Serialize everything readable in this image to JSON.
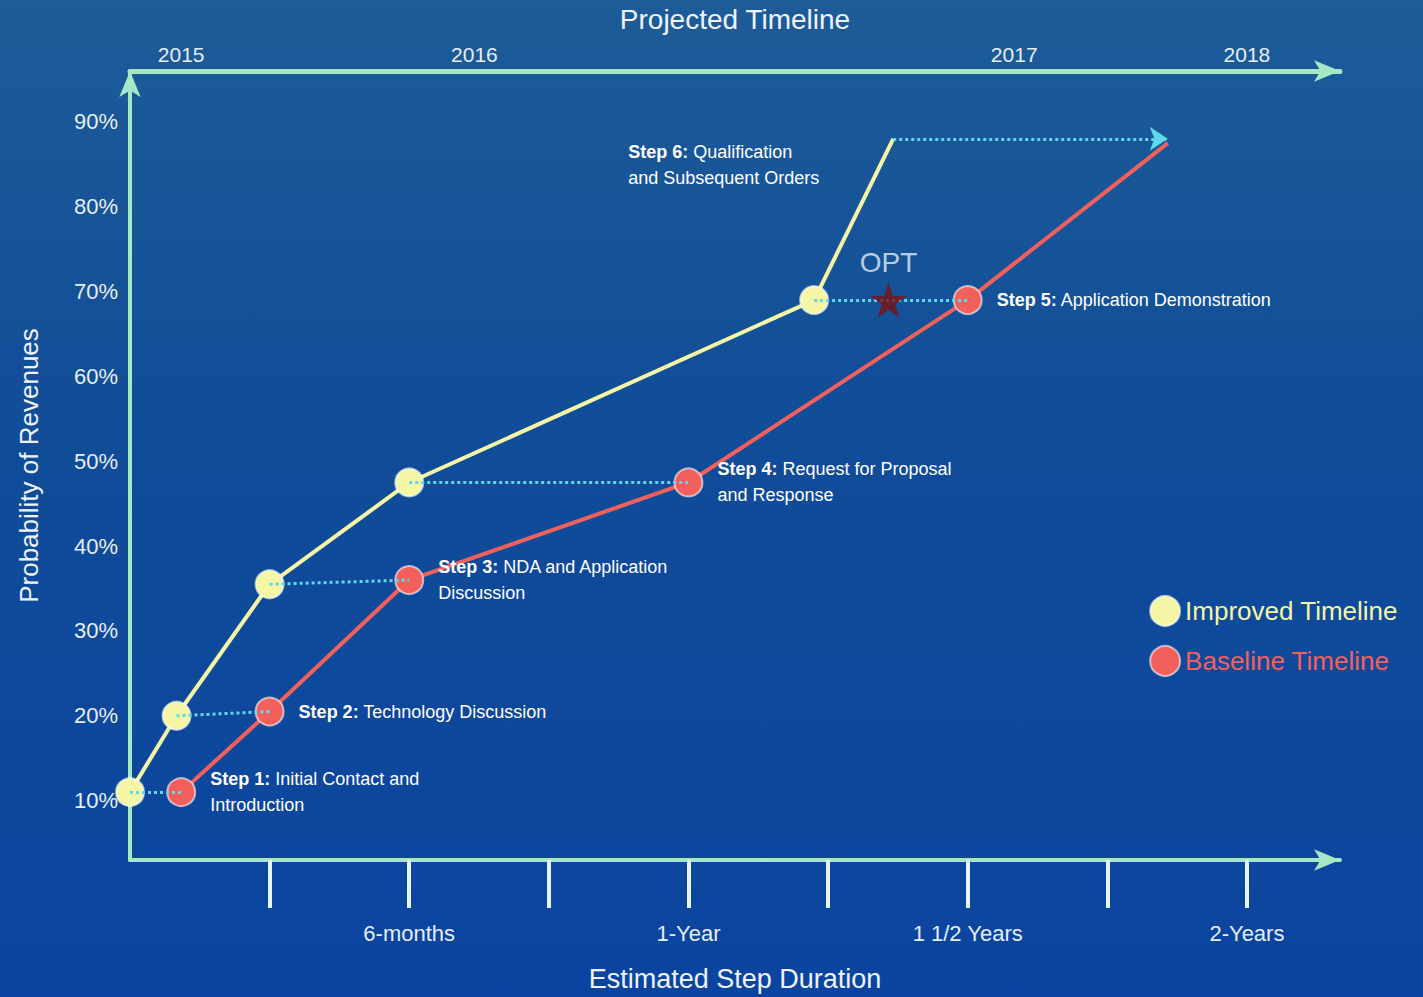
{
  "chart_data": {
    "type": "line",
    "x_label": "Estimated Step Duration",
    "x2_label": "Projected Timeline",
    "y_label": "Probability of Revenues",
    "xlim": [
      0,
      26
    ],
    "xticks": [
      {
        "value": 6,
        "label": "6-months"
      },
      {
        "value": 12,
        "label": "1-Year"
      },
      {
        "value": 18,
        "label": "1 1/2 Years"
      },
      {
        "value": 24,
        "label": "2-Years"
      }
    ],
    "x2ticks": [
      {
        "value": 1.1,
        "label": "2015"
      },
      {
        "value": 7.4,
        "label": "2016"
      },
      {
        "value": 19,
        "label": "2017"
      },
      {
        "value": 24,
        "label": "2018"
      }
    ],
    "ylim": [
      3,
      96
    ],
    "yticks": [
      {
        "value": 10,
        "label": "10%"
      },
      {
        "value": 20,
        "label": "20%"
      },
      {
        "value": 30,
        "label": "30%"
      },
      {
        "value": 40,
        "label": "40%"
      },
      {
        "value": 50,
        "label": "50%"
      },
      {
        "value": 60,
        "label": "60%"
      },
      {
        "value": 70,
        "label": "70%"
      },
      {
        "value": 80,
        "label": "80%"
      },
      {
        "value": 90,
        "label": "90%"
      }
    ],
    "series": [
      {
        "name": "Improved Timeline",
        "color": "#f4f6a6",
        "marker": "circle",
        "x": [
          0,
          1,
          3,
          6,
          14.7,
          16.4
        ],
        "values": [
          11,
          20,
          35.5,
          47.5,
          69,
          88
        ]
      },
      {
        "name": "Baseline Timeline",
        "color": "#f2605c",
        "marker": "circle",
        "x": [
          1.1,
          3,
          6,
          12,
          18,
          22.3
        ],
        "values": [
          11,
          20.5,
          36,
          47.5,
          69,
          87.5
        ]
      }
    ],
    "step_labels": [
      "Step 1: Initial Contact and Introduction",
      "Step 2: Technology Discussion",
      "Step 3: NDA and Application Discussion",
      "Step 4: Request for Proposal and Response",
      "Step 5: Application Demonstration",
      "Step 6: Qualification and Subsequent Orders"
    ],
    "annotations": [
      {
        "text": "OPT",
        "x": 16.3,
        "y": 69,
        "marker": "star",
        "color": "#7b1113"
      }
    ],
    "legend": "right",
    "grid": false
  }
}
